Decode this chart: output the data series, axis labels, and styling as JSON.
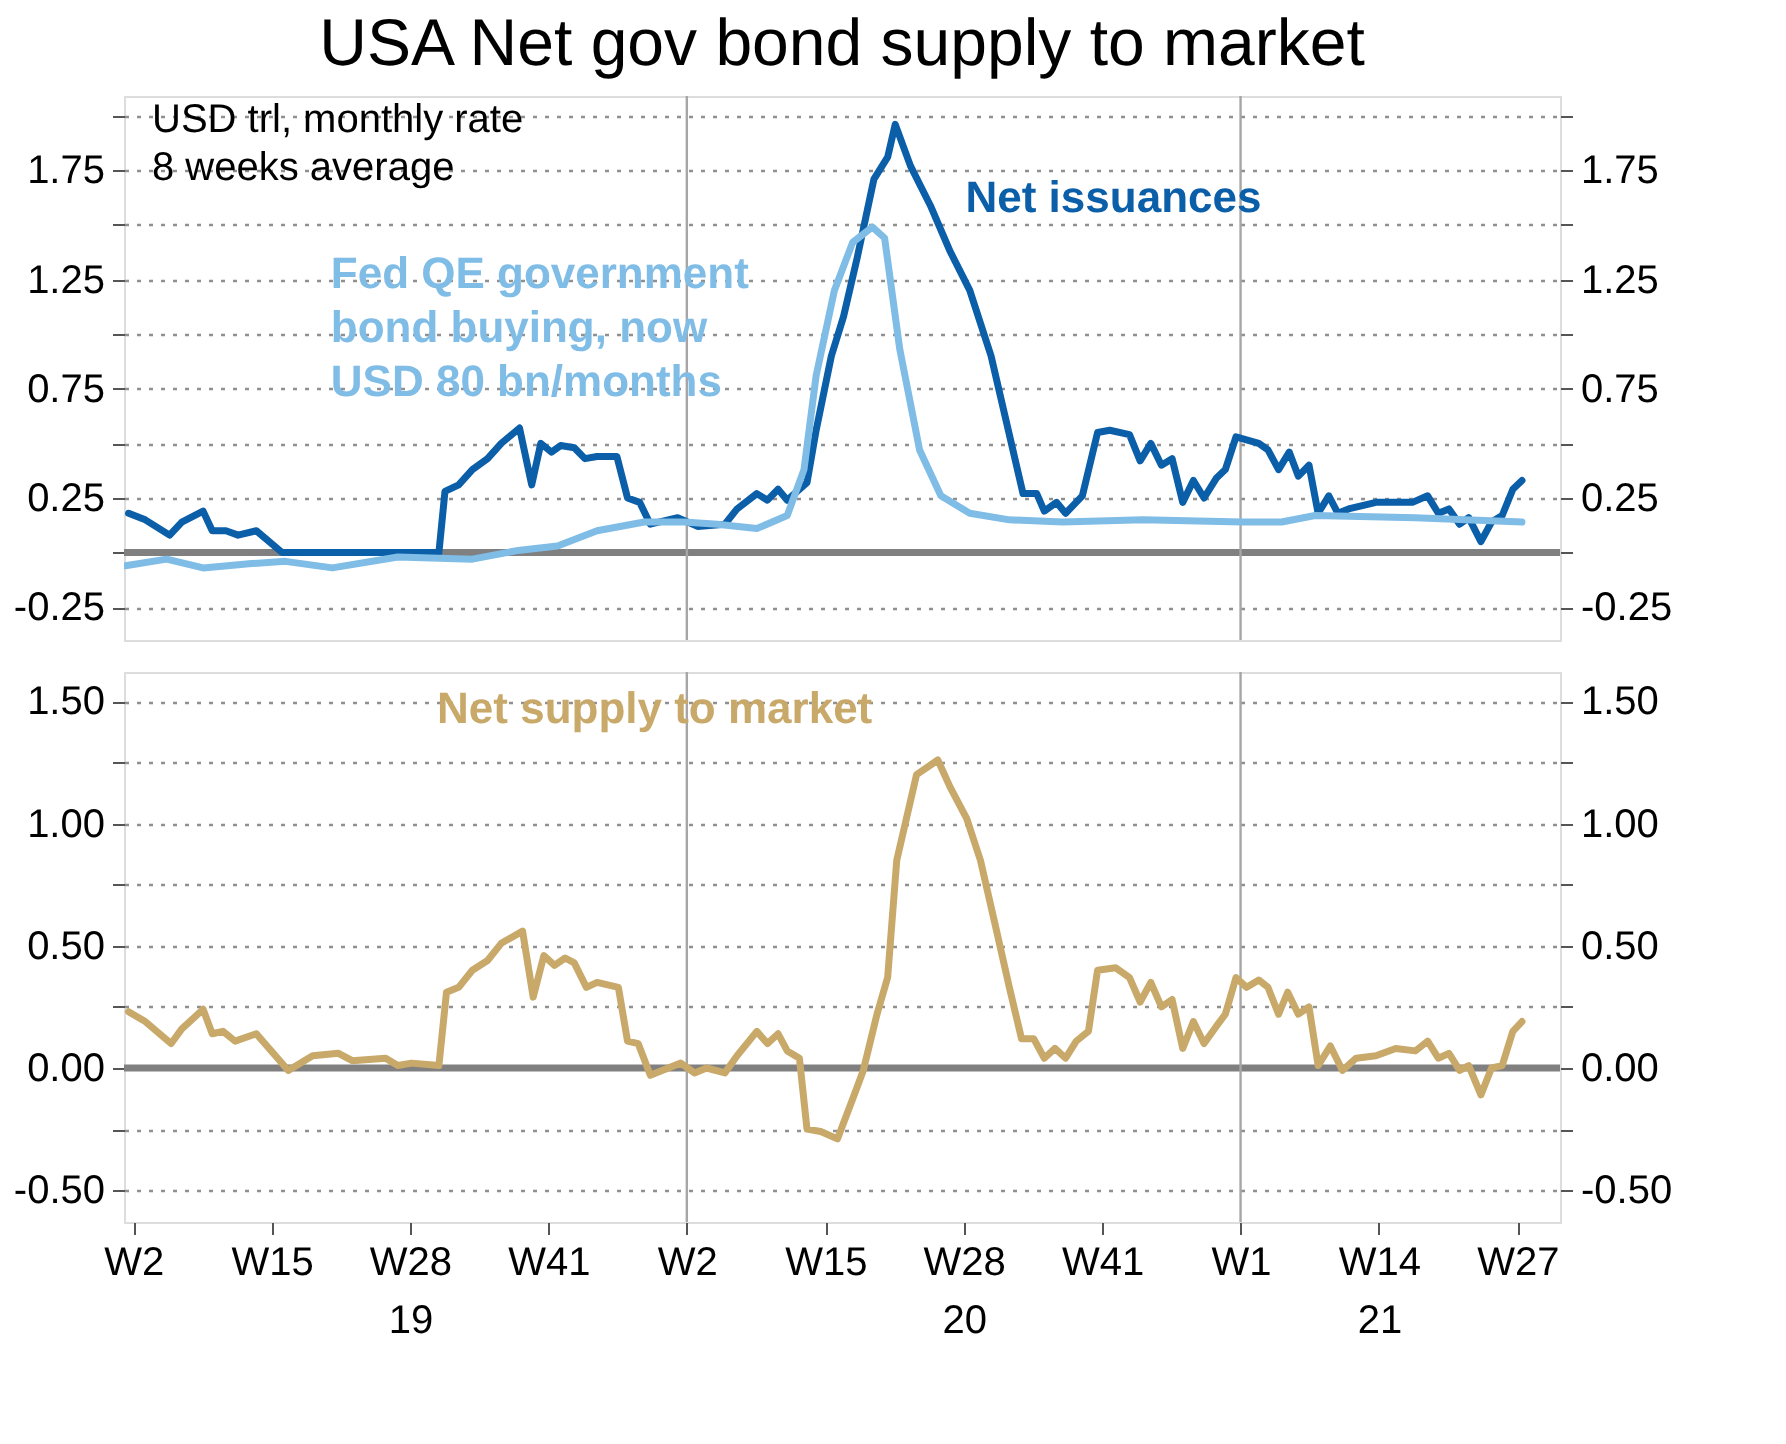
{
  "chart_data": [
    {
      "type": "line",
      "title": "USA Net gov bond supply to market",
      "xlim": [
        "2019-01-01",
        "2021-08-02"
      ],
      "ylim": [
        -0.4,
        2.09
      ],
      "yticks": [
        -0.25,
        {
          "value": 0,
          "label": null
        },
        0.25,
        {
          "value": 0.5,
          "label": null
        },
        0.75,
        {
          "value": 1.0,
          "label": null
        },
        1.25,
        {
          "value": 1.5,
          "label": null
        },
        1.75,
        {
          "value": 2.0,
          "label": null
        }
      ],
      "y2lim": [
        -0.4,
        2.09
      ],
      "y2ticks": [
        -0.25,
        {
          "value": 0,
          "label": null
        },
        0.25,
        {
          "value": 0.5,
          "label": null
        },
        0.75,
        {
          "value": 1.0,
          "label": null
        },
        1.25,
        {
          "value": 1.5,
          "label": null
        },
        1.75,
        {
          "value": 2.0,
          "label": null
        }
      ],
      "grid": "y",
      "tick_labels": "y",
      "ref_lines": [
        {
          "axis": "y",
          "value": 0,
          "color": "#808080"
        },
        {
          "axis": "x",
          "value": "2020-01-06",
          "color": "#a6a6a6"
        },
        {
          "axis": "x",
          "value": "2021-01-04",
          "color": "#a6a6a6"
        }
      ],
      "annotations": [
        "USD trl, monthly rate\n8 weeks average"
      ],
      "series": [
        {
          "name": "Net issuances",
          "color": "#0b5ea8",
          "x": [
            "2019-01-04",
            "2019-01-15",
            "2019-01-31",
            "2019-02-08",
            "2019-02-22",
            "2019-02-28",
            "2019-03-09",
            "2019-03-17",
            "2019-03-29",
            "2019-04-15",
            "2019-04-26",
            "2019-07-27",
            "2019-07-31",
            "2019-08-09",
            "2019-08-18",
            "2019-08-28",
            "2019-09-06",
            "2019-09-18",
            "2019-09-26",
            "2019-10-02",
            "2019-10-09",
            "2019-10-15",
            "2019-10-24",
            "2019-10-31",
            "2019-11-08",
            "2019-11-21",
            "2019-11-28",
            "2019-12-06",
            "2019-12-13",
            "2019-12-31",
            "2020-01-13",
            "2020-01-31",
            "2020-02-08",
            "2020-02-21",
            "2020-02-28",
            "2020-03-06",
            "2020-03-12",
            "2020-03-25",
            "2020-03-31",
            "2020-04-10",
            "2020-04-18",
            "2020-04-27",
            "2020-05-08",
            "2020-05-17",
            "2020-05-22",
            "2020-06-01",
            "2020-06-14",
            "2020-06-27",
            "2020-07-10",
            "2020-07-24",
            "2020-08-03",
            "2020-08-14",
            "2020-08-23",
            "2020-08-28",
            "2020-09-05",
            "2020-09-11",
            "2020-09-22",
            "2020-10-02",
            "2020-10-10",
            "2020-10-23",
            "2020-10-30",
            "2020-11-06",
            "2020-11-13",
            "2020-11-20",
            "2020-11-27",
            "2020-12-04",
            "2020-12-11",
            "2020-12-19",
            "2020-12-25",
            "2021-01-01",
            "2021-01-16",
            "2021-01-22",
            "2021-01-29",
            "2021-02-05",
            "2021-02-11",
            "2021-02-18",
            "2021-02-24",
            "2021-03-03",
            "2021-03-09",
            "2021-03-16",
            "2021-04-03",
            "2021-04-27",
            "2021-05-07",
            "2021-05-14",
            "2021-05-21",
            "2021-05-28",
            "2021-06-03",
            "2021-06-11",
            "2021-06-18",
            "2021-06-25",
            "2021-07-02",
            "2021-07-08"
          ],
          "values": [
            0.18,
            0.15,
            0.08,
            0.14,
            0.19,
            0.1,
            0.1,
            0.08,
            0.1,
            0.0,
            0.0,
            0.0,
            0.28,
            0.31,
            0.38,
            0.43,
            0.5,
            0.57,
            0.31,
            0.5,
            0.46,
            0.49,
            0.48,
            0.43,
            0.44,
            0.44,
            0.25,
            0.23,
            0.13,
            0.16,
            0.12,
            0.13,
            0.2,
            0.27,
            0.24,
            0.29,
            0.24,
            0.32,
            0.56,
            0.9,
            1.08,
            1.35,
            1.71,
            1.81,
            1.96,
            1.77,
            1.59,
            1.38,
            1.2,
            0.9,
            0.6,
            0.27,
            0.27,
            0.19,
            0.23,
            0.18,
            0.26,
            0.55,
            0.56,
            0.54,
            0.42,
            0.5,
            0.4,
            0.43,
            0.23,
            0.33,
            0.25,
            0.34,
            0.38,
            0.53,
            0.5,
            0.47,
            0.38,
            0.46,
            0.35,
            0.4,
            0.18,
            0.26,
            0.18,
            0.2,
            0.23,
            0.23,
            0.26,
            0.18,
            0.2,
            0.13,
            0.16,
            0.05,
            0.14,
            0.17,
            0.29,
            0.33
          ]
        },
        {
          "name": "Fed QE government\nbond buying, now\nUSD 80 bn/months",
          "color": "#7fbce6",
          "x": [
            "2019-01-02",
            "2019-01-29",
            "2019-02-22",
            "2019-03-26",
            "2019-04-17",
            "2019-05-18",
            "2019-06-30",
            "2019-08-18",
            "2019-09-17",
            "2019-10-13",
            "2019-11-08",
            "2019-12-09",
            "2020-01-04",
            "2020-01-26",
            "2020-02-21",
            "2020-03-12",
            "2020-03-23",
            "2020-03-31",
            "2020-04-12",
            "2020-04-24",
            "2020-05-07",
            "2020-05-15",
            "2020-05-25",
            "2020-06-07",
            "2020-06-21",
            "2020-07-10",
            "2020-08-05",
            "2020-09-09",
            "2020-11-01",
            "2021-01-05",
            "2021-01-31",
            "2021-02-22",
            "2021-04-29",
            "2021-07-08"
          ],
          "values": [
            -0.06,
            -0.03,
            -0.07,
            -0.05,
            -0.04,
            -0.07,
            -0.02,
            -0.03,
            0.01,
            0.03,
            0.1,
            0.14,
            0.14,
            0.13,
            0.11,
            0.17,
            0.38,
            0.81,
            1.2,
            1.42,
            1.49,
            1.44,
            0.93,
            0.47,
            0.26,
            0.18,
            0.15,
            0.14,
            0.15,
            0.14,
            0.14,
            0.17,
            0.16,
            0.14
          ]
        }
      ]
    },
    {
      "type": "line",
      "xlim": [
        "2019-01-01",
        "2021-08-02"
      ],
      "ylim": [
        -0.63,
        1.62
      ],
      "xticks": [
        {
          "value": "2019-01-07",
          "label": "W2"
        },
        {
          "value": "2019-04-08",
          "label": "W15"
        },
        {
          "value": "2019-07-08",
          "label": "W28\n19"
        },
        {
          "value": "2019-10-07",
          "label": "W41"
        },
        {
          "value": "2020-01-06",
          "label": "W2"
        },
        {
          "value": "2020-04-06",
          "label": "W15"
        },
        {
          "value": "2020-07-06",
          "label": "W28\n20"
        },
        {
          "value": "2020-10-05",
          "label": "W41"
        },
        {
          "value": "2021-01-04",
          "label": "W1"
        },
        {
          "value": "2021-04-05",
          "label": "W14\n21"
        },
        {
          "value": "2021-07-05",
          "label": "W27"
        }
      ],
      "yticks": [
        {
          "value": -0.5,
          "label": "-0.50"
        },
        {
          "value": -0.25,
          "label": null
        },
        {
          "value": 0,
          "label": "0.00"
        },
        {
          "value": 0.25,
          "label": null
        },
        {
          "value": 0.5,
          "label": "0.50"
        },
        {
          "value": 0.75,
          "label": null
        },
        {
          "value": 1.0,
          "label": "1.00"
        },
        {
          "value": 1.25,
          "label": null
        },
        {
          "value": 1.5,
          "label": "1.50"
        }
      ],
      "y2lim": [
        -0.63,
        1.62
      ],
      "y2ticks": [
        {
          "value": -0.5,
          "label": "-0.50"
        },
        {
          "value": -0.25,
          "label": null
        },
        {
          "value": 0,
          "label": "0.00"
        },
        {
          "value": 0.25,
          "label": null
        },
        {
          "value": 0.5,
          "label": "0.50"
        },
        {
          "value": 0.75,
          "label": null
        },
        {
          "value": 1.0,
          "label": "1.00"
        },
        {
          "value": 1.25,
          "label": null
        },
        {
          "value": 1.5,
          "label": "1.50"
        }
      ],
      "grid": "y",
      "ref_lines": [
        {
          "axis": "y",
          "value": 0,
          "color": "#808080"
        },
        {
          "axis": "x",
          "value": "2020-01-06",
          "color": "#a6a6a6"
        },
        {
          "axis": "x",
          "value": "2021-01-04",
          "color": "#a6a6a6"
        }
      ],
      "series": [
        {
          "name": "Net supply to market",
          "color": "#c8a96a",
          "x": [
            "2019-01-04",
            "2019-01-15",
            "2019-02-01",
            "2019-02-08",
            "2019-02-22",
            "2019-02-28",
            "2019-03-07",
            "2019-03-15",
            "2019-03-29",
            "2019-04-19",
            "2019-05-05",
            "2019-05-22",
            "2019-05-31",
            "2019-06-22",
            "2019-06-30",
            "2019-07-09",
            "2019-07-27",
            "2019-08-01",
            "2019-08-09",
            "2019-08-18",
            "2019-08-28",
            "2019-09-06",
            "2019-09-20",
            "2019-09-27",
            "2019-10-04",
            "2019-10-11",
            "2019-10-18",
            "2019-10-24",
            "2019-11-01",
            "2019-11-08",
            "2019-11-22",
            "2019-11-28",
            "2019-12-05",
            "2019-12-13",
            "2020-01-02",
            "2020-01-11",
            "2020-01-19",
            "2020-01-31",
            "2020-02-08",
            "2020-02-21",
            "2020-02-28",
            "2020-03-06",
            "2020-03-12",
            "2020-03-20",
            "2020-03-25",
            "2020-04-03",
            "2020-04-14",
            "2020-04-25",
            "2020-05-01",
            "2020-05-10",
            "2020-05-17",
            "2020-05-23",
            "2020-06-05",
            "2020-06-19",
            "2020-06-27",
            "2020-07-08",
            "2020-07-17",
            "2020-07-28",
            "2020-08-05",
            "2020-08-13",
            "2020-08-21",
            "2020-08-28",
            "2020-09-04",
            "2020-09-11",
            "2020-09-18",
            "2020-09-26",
            "2020-10-02",
            "2020-10-14",
            "2020-10-23",
            "2020-10-30",
            "2020-11-06",
            "2020-11-13",
            "2020-11-20",
            "2020-11-27",
            "2020-12-04",
            "2020-12-11",
            "2020-12-19",
            "2020-12-25",
            "2021-01-01",
            "2021-01-08",
            "2021-01-16",
            "2021-01-22",
            "2021-01-29",
            "2021-02-04",
            "2021-02-11",
            "2021-02-18",
            "2021-02-24",
            "2021-03-04",
            "2021-03-12",
            "2021-03-21",
            "2021-04-03",
            "2021-04-16",
            "2021-04-29",
            "2021-05-07",
            "2021-05-14",
            "2021-05-21",
            "2021-05-28",
            "2021-06-03",
            "2021-06-11",
            "2021-06-18",
            "2021-06-25",
            "2021-07-02",
            "2021-07-08"
          ],
          "values": [
            0.23,
            0.19,
            0.1,
            0.16,
            0.24,
            0.14,
            0.15,
            0.11,
            0.14,
            -0.01,
            0.05,
            0.06,
            0.03,
            0.04,
            0.01,
            0.02,
            0.01,
            0.31,
            0.33,
            0.4,
            0.44,
            0.51,
            0.56,
            0.29,
            0.46,
            0.42,
            0.45,
            0.43,
            0.33,
            0.35,
            0.33,
            0.11,
            0.1,
            -0.03,
            0.02,
            -0.02,
            0.0,
            -0.02,
            0.05,
            0.15,
            0.1,
            0.14,
            0.07,
            0.04,
            -0.25,
            -0.26,
            -0.29,
            -0.11,
            -0.01,
            0.22,
            0.37,
            0.85,
            1.2,
            1.26,
            1.15,
            1.02,
            0.85,
            0.55,
            0.33,
            0.12,
            0.12,
            0.04,
            0.08,
            0.04,
            0.11,
            0.15,
            0.4,
            0.41,
            0.37,
            0.27,
            0.35,
            0.25,
            0.28,
            0.08,
            0.19,
            0.1,
            0.17,
            0.22,
            0.37,
            0.33,
            0.36,
            0.33,
            0.22,
            0.31,
            0.22,
            0.25,
            0.01,
            0.09,
            -0.01,
            0.04,
            0.05,
            0.08,
            0.07,
            0.11,
            0.04,
            0.06,
            -0.01,
            0.01,
            -0.11,
            0.0,
            0.01,
            0.15,
            0.19
          ]
        }
      ]
    }
  ]
}
